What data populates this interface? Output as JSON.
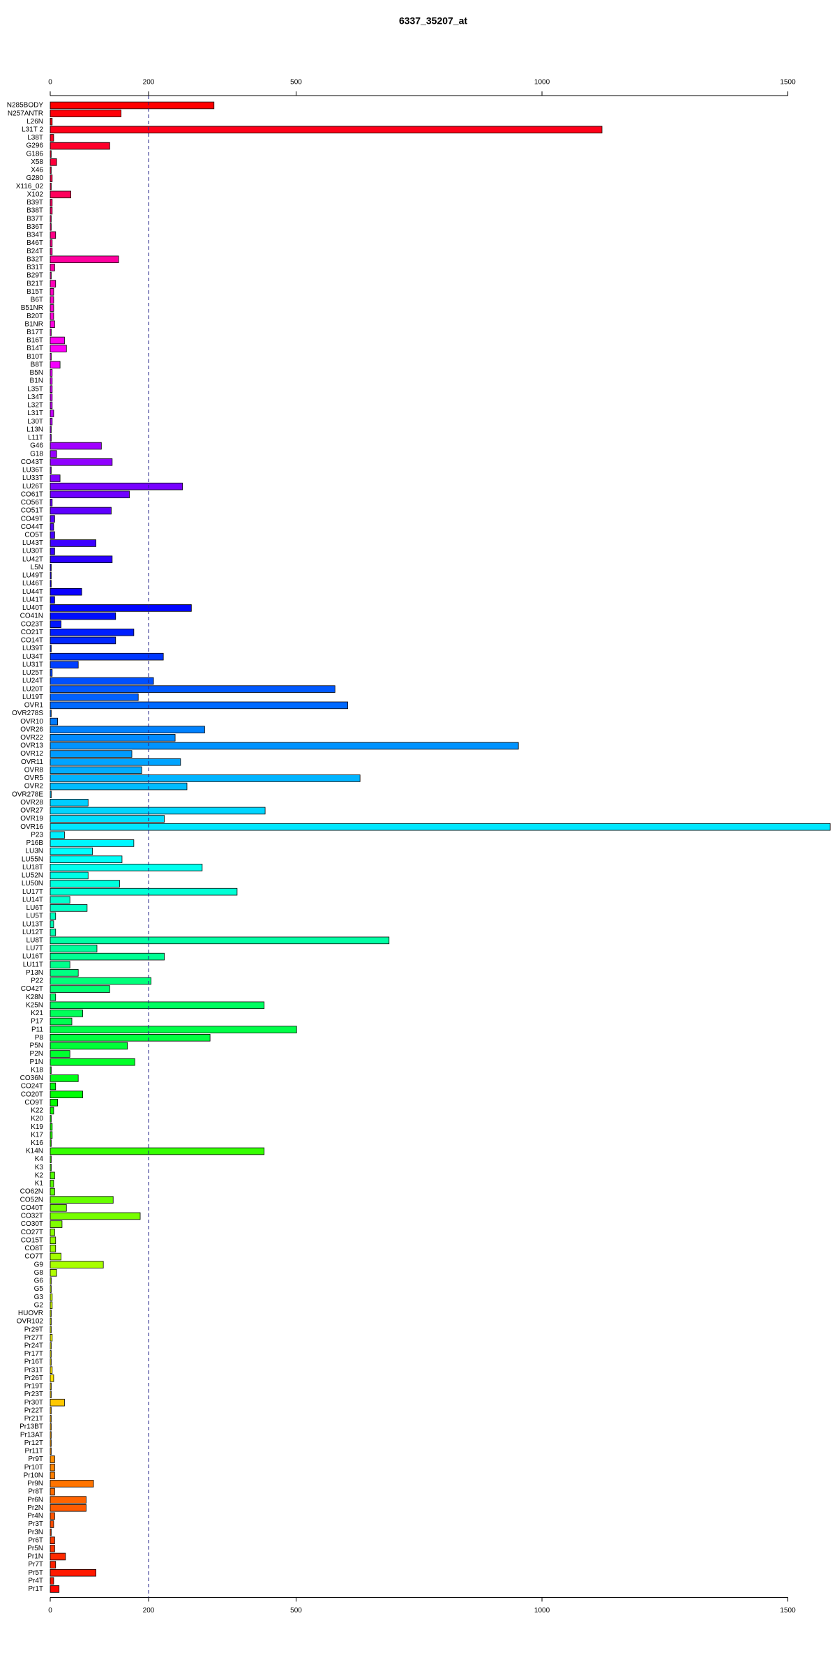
{
  "chart_data": {
    "type": "barh",
    "title": "6337_35207_at",
    "categories": [
      "N285BODY",
      "N257ANTR",
      "L26N",
      "L31T 2",
      "L38T",
      "G296",
      "G186",
      "X58",
      "X46",
      "G280",
      "X116_02",
      "X102",
      "B39T",
      "B38T",
      "B37T",
      "B36T",
      "B34T",
      "B46T",
      "B24T",
      "B32T",
      "B31T",
      "B29T",
      "B21T",
      "B15T",
      "B6T",
      "B51NR",
      "B20T",
      "B1NR",
      "B17T",
      "B16T",
      "B14T",
      "B10T",
      "B8T",
      "B5N",
      "B1N",
      "L35T",
      "L34T",
      "L32T",
      "L31T",
      "L30T",
      "L13N",
      "L11T",
      "G46",
      "G18",
      "CO43T",
      "LU36T",
      "LU33T",
      "LU26T",
      "CO61T",
      "CO56T",
      "CO51T",
      "CO49T",
      "CO44T",
      "CO5T",
      "LU43T",
      "LU30T",
      "LU42T",
      "L5N",
      "LU49T",
      "LU46T",
      "LU44T",
      "LU41T",
      "LU40T",
      "CO41N",
      "CO23T",
      "CO21T",
      "CO14T",
      "LU39T",
      "LU34T",
      "LU31T",
      "LU25T",
      "LU24T",
      "LU20T",
      "LU19T",
      "OVR1",
      "OVR278S",
      "OVR10",
      "OVR26",
      "OVR22",
      "OVR13",
      "OVR12",
      "OVR11",
      "OVR8",
      "OVR5",
      "OVR2",
      "OVR278E",
      "OVR28",
      "OVR27",
      "OVR19",
      "OVR16",
      "P23",
      "P16B",
      "LU3N",
      "LU55N",
      "LU18T",
      "LU52N",
      "LU50N",
      "LU17T",
      "LU14T",
      "LU6T",
      "LU5T",
      "LU13T",
      "LU12T",
      "LU8T",
      "LU7T",
      "LU16T",
      "LU11T",
      "P13N",
      "P22",
      "CO42T",
      "K28N",
      "K25N",
      "K21",
      "P17",
      "P11",
      "P8",
      "P5N",
      "P2N",
      "P1N",
      "K18",
      "CO36N",
      "CO24T",
      "CO20T",
      "CO9T",
      "K22",
      "K20",
      "K19",
      "K17",
      "K16",
      "K14N",
      "K4",
      "K3",
      "K2",
      "K1",
      "CO62N",
      "CO52N",
      "CO40T",
      "CO32T",
      "CO30T",
      "CO27T",
      "CO15T",
      "CO8T",
      "CO7T",
      "G9",
      "G8",
      "G6",
      "G5",
      "G3",
      "G2",
      "HUOVR",
      "OVR102",
      "Pr29T",
      "Pr27T",
      "Pr24T",
      "Pr17T",
      "Pr16T",
      "Pr31T",
      "Pr26T",
      "Pr19T",
      "Pr23T",
      "Pr30T",
      "Pr22T",
      "Pr21T",
      "Pr13BT",
      "Pr13AT",
      "Pr12T",
      "Pr11T",
      "Pr9T",
      "Pr10T",
      "Pr10N",
      "Pr9N",
      "Pr8T",
      "Pr6N",
      "Pr2N",
      "Pr4N",
      "Pr3T",
      "Pr3N",
      "Pr6T",
      "Pr5N",
      "Pr1N",
      "Pr7T",
      "Pr5T",
      "Pr4T",
      "Pr1T"
    ],
    "values": [
      333,
      144,
      4,
      1122,
      7,
      121,
      2,
      13,
      2,
      4,
      2,
      42,
      4,
      4,
      2,
      2,
      11,
      4,
      4,
      139,
      9,
      2,
      11,
      7,
      7,
      7,
      7,
      9,
      2,
      29,
      33,
      2,
      20,
      4,
      4,
      4,
      4,
      4,
      7,
      4,
      2,
      2,
      104,
      13,
      126,
      2,
      20,
      269,
      161,
      4,
      124,
      9,
      7,
      9,
      93,
      9,
      126,
      2,
      2,
      2,
      64,
      9,
      287,
      133,
      22,
      170,
      133,
      2,
      230,
      57,
      4,
      210,
      579,
      179,
      605,
      2,
      15,
      314,
      254,
      952,
      166,
      265,
      186,
      630,
      278,
      2,
      77,
      437,
      232,
      1586,
      29,
      170,
      86,
      146,
      309,
      77,
      141,
      380,
      40,
      75,
      11,
      7,
      11,
      689,
      95,
      232,
      40,
      57,
      205,
      121,
      11,
      435,
      66,
      44,
      501,
      325,
      157,
      40,
      172,
      2,
      57,
      11,
      66,
      15,
      7,
      2,
      4,
      4,
      2,
      435,
      2,
      2,
      9,
      7,
      9,
      128,
      33,
      183,
      24,
      9,
      11,
      11,
      22,
      108,
      13,
      2,
      2,
      4,
      4,
      2,
      2,
      2,
      4,
      2,
      2,
      2,
      4,
      7,
      2,
      2,
      29,
      2,
      2,
      2,
      2,
      2,
      2,
      9,
      9,
      9,
      88,
      9,
      73,
      73,
      9,
      7,
      2,
      9,
      9,
      31,
      11,
      93,
      7,
      18
    ],
    "xlim": [
      0,
      1590
    ],
    "xticks": [
      0,
      200,
      500,
      1000,
      1500
    ],
    "reference_line": 200,
    "color_scale": "rainbow"
  }
}
